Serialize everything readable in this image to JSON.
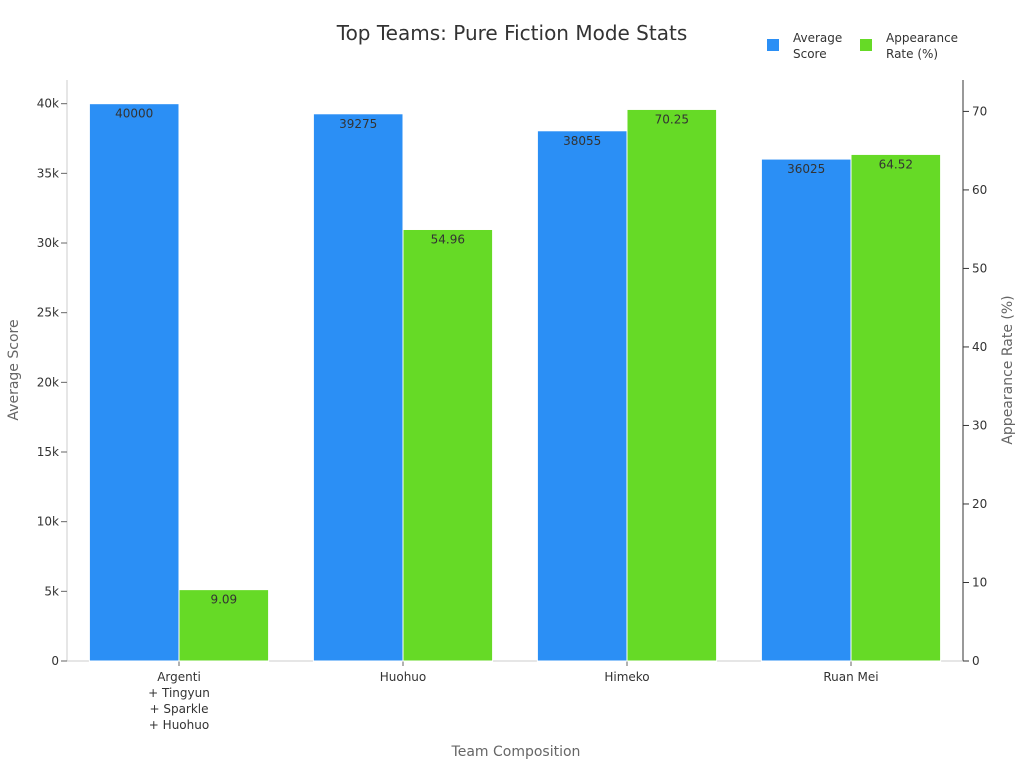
{
  "chart_data": {
    "type": "bar",
    "title": "Top Teams: Pure Fiction Mode Stats",
    "xlabel": "Team Composition",
    "ylabel_left": "Average Score",
    "ylabel_right": "Appearance Rate (%)",
    "categories": [
      [
        "Argenti",
        "+ Tingyun",
        "+ Sparkle",
        "+ Huohuo"
      ],
      [
        "Huohuo"
      ],
      [
        "Himeko"
      ],
      [
        "Ruan Mei"
      ]
    ],
    "series": [
      {
        "name": "Average Score",
        "legend_lines": [
          "Average",
          "Score"
        ],
        "axis": "left",
        "color": "#2b8ff5",
        "values": [
          40000,
          39275,
          38055,
          36025
        ]
      },
      {
        "name": "Appearance Rate (%)",
        "legend_lines": [
          "Appearance",
          "Rate (%)"
        ],
        "axis": "right",
        "color": "#66da26",
        "values": [
          9.09,
          54.96,
          70.25,
          64.52
        ]
      }
    ],
    "ylim_left": [
      0,
      41700
    ],
    "ylim_right": [
      0,
      74
    ],
    "yticks_left": [
      0,
      5000,
      10000,
      15000,
      20000,
      25000,
      30000,
      35000,
      40000
    ],
    "yticks_left_labels": [
      "0",
      "5k",
      "10k",
      "15k",
      "20k",
      "25k",
      "30k",
      "35k",
      "40k"
    ],
    "yticks_right": [
      0,
      10,
      20,
      30,
      40,
      50,
      60,
      70
    ],
    "yticks_right_labels": [
      "0",
      "10",
      "20",
      "30",
      "40",
      "50",
      "60",
      "70"
    ],
    "legend_position": "top-right",
    "grid": false
  }
}
